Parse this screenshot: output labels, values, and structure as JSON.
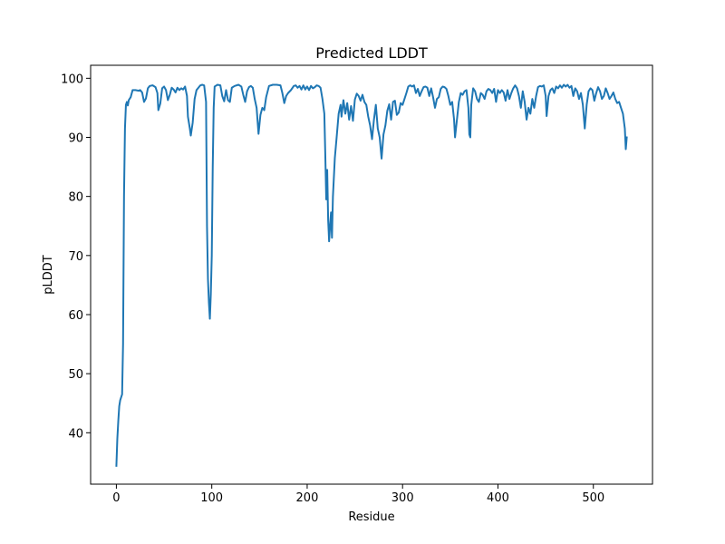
{
  "chart_data": {
    "type": "line",
    "title": "Predicted LDDT",
    "xlabel": "Residue",
    "ylabel": "pLDDT",
    "xlim": [
      -27,
      562
    ],
    "ylim": [
      31.3,
      102.2
    ],
    "xticks": [
      0,
      100,
      200,
      300,
      400,
      500
    ],
    "yticks": [
      40,
      50,
      60,
      70,
      80,
      90,
      100
    ],
    "grid": false,
    "legend": "none",
    "series": [
      {
        "color": "#1f77b4",
        "points": [
          [
            0,
            34.4
          ],
          [
            1,
            39.0
          ],
          [
            2,
            42.0
          ],
          [
            3,
            44.5
          ],
          [
            4,
            45.5
          ],
          [
            5,
            46.0
          ],
          [
            6,
            46.5
          ],
          [
            7,
            55.0
          ],
          [
            8,
            80.0
          ],
          [
            9,
            91.5
          ],
          [
            10,
            95.5
          ],
          [
            11,
            96.0
          ],
          [
            12,
            95.4
          ],
          [
            13,
            96.3
          ],
          [
            15,
            96.8
          ],
          [
            17,
            98.0
          ],
          [
            20,
            98.0
          ],
          [
            23,
            97.9
          ],
          [
            25,
            98.0
          ],
          [
            27,
            97.6
          ],
          [
            29,
            96.0
          ],
          [
            31,
            96.6
          ],
          [
            33,
            98.3
          ],
          [
            35,
            98.7
          ],
          [
            38,
            98.8
          ],
          [
            41,
            98.5
          ],
          [
            43,
            97.5
          ],
          [
            44,
            94.6
          ],
          [
            46,
            95.7
          ],
          [
            48,
            98.3
          ],
          [
            50,
            98.6
          ],
          [
            52,
            98.0
          ],
          [
            54,
            96.3
          ],
          [
            56,
            97.2
          ],
          [
            58,
            98.4
          ],
          [
            60,
            98.1
          ],
          [
            62,
            97.6
          ],
          [
            64,
            98.4
          ],
          [
            66,
            98.0
          ],
          [
            68,
            98.3
          ],
          [
            70,
            98.1
          ],
          [
            72,
            98.6
          ],
          [
            74,
            97.0
          ],
          [
            75,
            93.5
          ],
          [
            77,
            91.5
          ],
          [
            78,
            90.3
          ],
          [
            80,
            92.5
          ],
          [
            82,
            96.5
          ],
          [
            84,
            98.0
          ],
          [
            86,
            98.4
          ],
          [
            88,
            98.8
          ],
          [
            90,
            98.9
          ],
          [
            92,
            98.8
          ],
          [
            94,
            96.0
          ],
          [
            95,
            75.0
          ],
          [
            96,
            66.0
          ],
          [
            97,
            62.0
          ],
          [
            98,
            59.3
          ],
          [
            99,
            63.5
          ],
          [
            100,
            70.0
          ],
          [
            101,
            85.0
          ],
          [
            102,
            95.0
          ],
          [
            103,
            98.6
          ],
          [
            106,
            98.9
          ],
          [
            109,
            98.8
          ],
          [
            111,
            97.0
          ],
          [
            113,
            96.1
          ],
          [
            115,
            98.0
          ],
          [
            117,
            96.3
          ],
          [
            119,
            96.0
          ],
          [
            121,
            98.4
          ],
          [
            124,
            98.7
          ],
          [
            128,
            98.9
          ],
          [
            131,
            98.6
          ],
          [
            133,
            97.2
          ],
          [
            135,
            96.0
          ],
          [
            137,
            97.8
          ],
          [
            139,
            98.5
          ],
          [
            141,
            98.7
          ],
          [
            143,
            98.4
          ],
          [
            145,
            96.5
          ],
          [
            147,
            95.0
          ],
          [
            149,
            90.6
          ],
          [
            151,
            93.8
          ],
          [
            153,
            95.0
          ],
          [
            155,
            94.6
          ],
          [
            157,
            96.8
          ],
          [
            160,
            98.7
          ],
          [
            164,
            98.9
          ],
          [
            168,
            98.9
          ],
          [
            172,
            98.8
          ],
          [
            174,
            97.5
          ],
          [
            176,
            95.8
          ],
          [
            178,
            97.0
          ],
          [
            180,
            97.5
          ],
          [
            183,
            98.0
          ],
          [
            186,
            98.7
          ],
          [
            188,
            98.8
          ],
          [
            190,
            98.4
          ],
          [
            192,
            98.7
          ],
          [
            194,
            98.1
          ],
          [
            196,
            98.8
          ],
          [
            198,
            98.1
          ],
          [
            200,
            98.6
          ],
          [
            202,
            98.0
          ],
          [
            204,
            98.7
          ],
          [
            206,
            98.3
          ],
          [
            208,
            98.5
          ],
          [
            210,
            98.8
          ],
          [
            212,
            98.7
          ],
          [
            214,
            98.4
          ],
          [
            216,
            96.5
          ],
          [
            218,
            94.0
          ],
          [
            219,
            87.0
          ],
          [
            220,
            79.5
          ],
          [
            221,
            84.5
          ],
          [
            222,
            76.0
          ],
          [
            223,
            72.4
          ],
          [
            224,
            75.0
          ],
          [
            225,
            77.3
          ],
          [
            226,
            73.0
          ],
          [
            227,
            80.0
          ],
          [
            229,
            86.5
          ],
          [
            231,
            90.2
          ],
          [
            233,
            94.0
          ],
          [
            235,
            95.5
          ],
          [
            236,
            93.5
          ],
          [
            238,
            96.3
          ],
          [
            240,
            94.0
          ],
          [
            242,
            95.8
          ],
          [
            244,
            93.0
          ],
          [
            246,
            95.3
          ],
          [
            248,
            92.8
          ],
          [
            250,
            96.4
          ],
          [
            252,
            97.4
          ],
          [
            254,
            97.0
          ],
          [
            256,
            96.2
          ],
          [
            258,
            97.2
          ],
          [
            260,
            96.0
          ],
          [
            262,
            95.5
          ],
          [
            264,
            93.5
          ],
          [
            266,
            92.0
          ],
          [
            268,
            89.7
          ],
          [
            270,
            93.0
          ],
          [
            272,
            95.5
          ],
          [
            274,
            91.5
          ],
          [
            276,
            90.0
          ],
          [
            278,
            86.4
          ],
          [
            280,
            90.5
          ],
          [
            282,
            92.0
          ],
          [
            284,
            94.5
          ],
          [
            286,
            95.6
          ],
          [
            288,
            93.0
          ],
          [
            290,
            96.0
          ],
          [
            292,
            96.2
          ],
          [
            294,
            93.8
          ],
          [
            296,
            94.2
          ],
          [
            298,
            95.8
          ],
          [
            300,
            95.5
          ],
          [
            302,
            96.5
          ],
          [
            304,
            97.5
          ],
          [
            306,
            98.6
          ],
          [
            308,
            98.8
          ],
          [
            310,
            98.6
          ],
          [
            312,
            98.8
          ],
          [
            314,
            97.5
          ],
          [
            316,
            98.2
          ],
          [
            318,
            97.0
          ],
          [
            320,
            97.8
          ],
          [
            322,
            98.5
          ],
          [
            324,
            98.6
          ],
          [
            326,
            98.4
          ],
          [
            328,
            97.0
          ],
          [
            330,
            98.3
          ],
          [
            332,
            96.8
          ],
          [
            334,
            95.0
          ],
          [
            336,
            96.5
          ],
          [
            338,
            96.8
          ],
          [
            340,
            98.2
          ],
          [
            342,
            98.6
          ],
          [
            344,
            98.5
          ],
          [
            346,
            98.2
          ],
          [
            348,
            97.0
          ],
          [
            350,
            95.5
          ],
          [
            352,
            96.0
          ],
          [
            354,
            93.0
          ],
          [
            355,
            90.0
          ],
          [
            357,
            93.0
          ],
          [
            359,
            96.0
          ],
          [
            361,
            97.5
          ],
          [
            363,
            97.2
          ],
          [
            365,
            97.8
          ],
          [
            367,
            98.0
          ],
          [
            369,
            95.0
          ],
          [
            370,
            90.5
          ],
          [
            371,
            90.0
          ],
          [
            372,
            95.5
          ],
          [
            374,
            98.3
          ],
          [
            376,
            97.8
          ],
          [
            378,
            96.5
          ],
          [
            380,
            96.0
          ],
          [
            382,
            97.5
          ],
          [
            384,
            97.2
          ],
          [
            386,
            96.5
          ],
          [
            388,
            97.8
          ],
          [
            390,
            98.2
          ],
          [
            392,
            98.0
          ],
          [
            394,
            97.5
          ],
          [
            396,
            98.2
          ],
          [
            398,
            96.0
          ],
          [
            400,
            98.0
          ],
          [
            402,
            97.5
          ],
          [
            404,
            98.0
          ],
          [
            406,
            97.6
          ],
          [
            408,
            96.2
          ],
          [
            410,
            98.0
          ],
          [
            412,
            96.5
          ],
          [
            414,
            97.5
          ],
          [
            416,
            98.3
          ],
          [
            418,
            98.8
          ],
          [
            420,
            98.3
          ],
          [
            422,
            97.0
          ],
          [
            424,
            95.0
          ],
          [
            426,
            97.8
          ],
          [
            428,
            96.0
          ],
          [
            430,
            93.0
          ],
          [
            432,
            95.0
          ],
          [
            434,
            94.0
          ],
          [
            436,
            96.5
          ],
          [
            438,
            95.0
          ],
          [
            440,
            97.0
          ],
          [
            442,
            98.5
          ],
          [
            444,
            98.7
          ],
          [
            446,
            98.6
          ],
          [
            448,
            98.8
          ],
          [
            450,
            97.0
          ],
          [
            451,
            93.6
          ],
          [
            453,
            97.0
          ],
          [
            455,
            98.0
          ],
          [
            457,
            98.3
          ],
          [
            459,
            97.5
          ],
          [
            461,
            98.6
          ],
          [
            463,
            98.3
          ],
          [
            465,
            98.8
          ],
          [
            467,
            98.4
          ],
          [
            469,
            98.9
          ],
          [
            471,
            98.6
          ],
          [
            473,
            98.9
          ],
          [
            475,
            98.4
          ],
          [
            477,
            98.7
          ],
          [
            479,
            97.0
          ],
          [
            481,
            98.3
          ],
          [
            483,
            97.8
          ],
          [
            485,
            96.5
          ],
          [
            487,
            97.5
          ],
          [
            489,
            95.5
          ],
          [
            491,
            91.5
          ],
          [
            493,
            95.5
          ],
          [
            495,
            97.8
          ],
          [
            497,
            98.3
          ],
          [
            499,
            98.0
          ],
          [
            501,
            96.2
          ],
          [
            503,
            97.5
          ],
          [
            505,
            98.5
          ],
          [
            507,
            97.8
          ],
          [
            509,
            96.5
          ],
          [
            511,
            97.0
          ],
          [
            513,
            98.3
          ],
          [
            515,
            97.5
          ],
          [
            517,
            96.5
          ],
          [
            519,
            97.0
          ],
          [
            521,
            97.6
          ],
          [
            523,
            96.5
          ],
          [
            525,
            95.8
          ],
          [
            527,
            96.0
          ],
          [
            529,
            95.0
          ],
          [
            531,
            94.0
          ],
          [
            533,
            91.5
          ],
          [
            534,
            88.0
          ],
          [
            535,
            90.0
          ]
        ]
      }
    ]
  }
}
